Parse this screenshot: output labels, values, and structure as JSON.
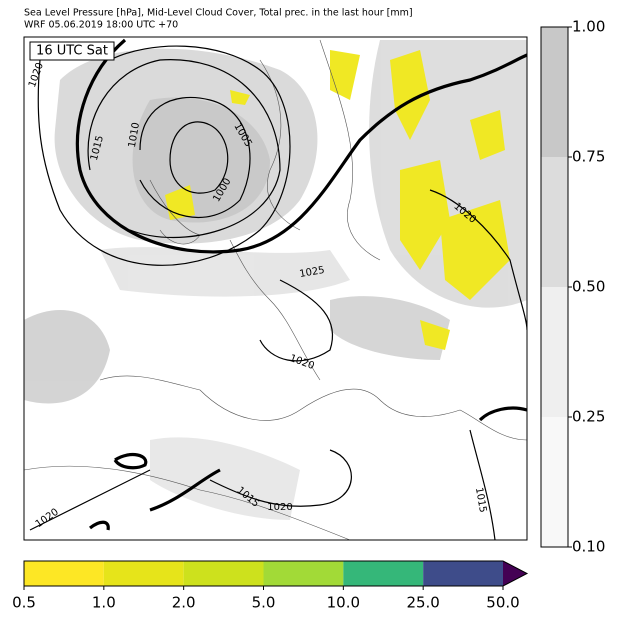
{
  "header": {
    "title": "Sea Level Pressure [hPa], Mid-Level Cloud Cover, Total prec. in the last hour [mm]",
    "subtitle": "WRF 05.06.2019 18:00 UTC +70"
  },
  "map": {
    "time_label": "16 UTC Sat",
    "contour_labels": [
      "1020",
      "1015",
      "1010",
      "1005",
      "1000",
      "1020",
      "1025",
      "1020",
      "1015",
      "1020",
      "1020",
      "1015"
    ]
  },
  "cloud_colorbar": {
    "labels": [
      "1.00",
      "0.75",
      "0.50",
      "0.25",
      "0.10"
    ],
    "colors": [
      "#c8c8c8",
      "#dcdcdc",
      "#efefef",
      "#f8f8f8"
    ]
  },
  "precip_colorbar": {
    "labels": [
      "0.5",
      "1.0",
      "2.0",
      "5.0",
      "10.0",
      "25.0",
      "50.0"
    ],
    "colors": [
      "#fde725",
      "#e6e41a",
      "#cde11d",
      "#a2da37",
      "#35b779",
      "#3e4c8a"
    ],
    "over_color": "#440154"
  }
}
